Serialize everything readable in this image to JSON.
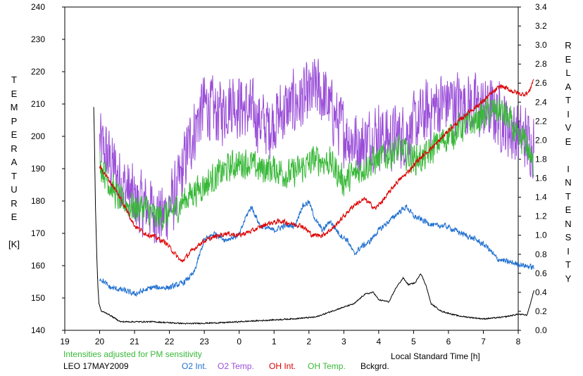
{
  "chart_data": {
    "type": "line",
    "x_ticks": [
      "19",
      "20",
      "21",
      "22",
      "23",
      "0",
      "1",
      "2",
      "3",
      "4",
      "5",
      "6",
      "7",
      "8"
    ],
    "xlim": [
      19,
      32
    ],
    "xlabel": "Local Standard Time [h]",
    "left_axis": {
      "label_letters": [
        "T",
        "E",
        "M",
        "P",
        "E",
        "R",
        "A",
        "T",
        "U",
        "R",
        "E",
        "",
        "[K]"
      ],
      "ylim": [
        140,
        240
      ],
      "ticks": [
        "140",
        "150",
        "160",
        "170",
        "180",
        "190",
        "200",
        "210",
        "220",
        "230",
        "240"
      ]
    },
    "right_axis": {
      "label_letters": [
        "R",
        "E",
        "L",
        "A",
        "T",
        "I",
        "V",
        "E",
        "",
        "I",
        "N",
        "T",
        "E",
        "N",
        "S",
        "I",
        "T",
        "Y"
      ],
      "ylim": [
        0.0,
        3.4
      ],
      "ticks": [
        "0.0",
        "0.2",
        "0.4",
        "0.6",
        "0.8",
        "1.0",
        "1.2",
        "1.4",
        "1.6",
        "1.8",
        "2.0",
        "2.2",
        "2.4",
        "2.6",
        "2.8",
        "3.0",
        "3.2",
        "3.4"
      ]
    },
    "series": [
      {
        "name": "O2 Int.",
        "axis": "right",
        "color": "#1f6fd0",
        "noise": 0.035,
        "points": [
          [
            20.0,
            0.55
          ],
          [
            20.3,
            0.45
          ],
          [
            20.7,
            0.42
          ],
          [
            21.0,
            0.38
          ],
          [
            21.5,
            0.45
          ],
          [
            22.0,
            0.45
          ],
          [
            22.4,
            0.5
          ],
          [
            22.7,
            0.6
          ],
          [
            23.0,
            0.95
          ],
          [
            23.3,
            1.02
          ],
          [
            23.6,
            0.95
          ],
          [
            24.0,
            1.0
          ],
          [
            24.2,
            1.2
          ],
          [
            24.35,
            1.3
          ],
          [
            24.6,
            1.1
          ],
          [
            25.0,
            1.05
          ],
          [
            25.3,
            1.1
          ],
          [
            25.6,
            1.1
          ],
          [
            25.8,
            1.3
          ],
          [
            26.0,
            1.35
          ],
          [
            26.2,
            1.15
          ],
          [
            26.4,
            1.05
          ],
          [
            26.6,
            1.15
          ],
          [
            26.9,
            1.0
          ],
          [
            27.1,
            0.95
          ],
          [
            27.3,
            0.8
          ],
          [
            27.5,
            0.88
          ],
          [
            27.7,
            0.92
          ],
          [
            28.0,
            1.05
          ],
          [
            28.3,
            1.15
          ],
          [
            28.6,
            1.25
          ],
          [
            28.8,
            1.3
          ],
          [
            29.0,
            1.2
          ],
          [
            29.3,
            1.15
          ],
          [
            29.6,
            1.1
          ],
          [
            29.9,
            1.1
          ],
          [
            30.2,
            1.05
          ],
          [
            30.5,
            1.0
          ],
          [
            30.8,
            0.95
          ],
          [
            31.1,
            0.88
          ],
          [
            31.4,
            0.75
          ],
          [
            31.7,
            0.72
          ],
          [
            32.2,
            0.68
          ],
          [
            32.45,
            0.66
          ]
        ]
      },
      {
        "name": "O2 Temp.",
        "axis": "left",
        "color": "#9a4ed8",
        "noise": 12,
        "points": [
          [
            20.0,
            198
          ],
          [
            20.3,
            192
          ],
          [
            20.7,
            185
          ],
          [
            21.0,
            180
          ],
          [
            21.4,
            178
          ],
          [
            21.8,
            175
          ],
          [
            22.2,
            182
          ],
          [
            22.5,
            195
          ],
          [
            22.8,
            205
          ],
          [
            23.0,
            210
          ],
          [
            23.4,
            207
          ],
          [
            23.8,
            211
          ],
          [
            24.1,
            209
          ],
          [
            24.5,
            206
          ],
          [
            24.8,
            203
          ],
          [
            25.2,
            207
          ],
          [
            25.6,
            210
          ],
          [
            26.0,
            212
          ],
          [
            26.2,
            215
          ],
          [
            26.5,
            211
          ],
          [
            26.8,
            205
          ],
          [
            27.2,
            199
          ],
          [
            27.5,
            197
          ],
          [
            27.9,
            201
          ],
          [
            28.3,
            199
          ],
          [
            28.8,
            201
          ],
          [
            29.2,
            205
          ],
          [
            29.6,
            209
          ],
          [
            30.0,
            211
          ],
          [
            30.5,
            210
          ],
          [
            31.0,
            208
          ],
          [
            31.4,
            207
          ],
          [
            31.7,
            203
          ],
          [
            32.0,
            200
          ],
          [
            32.45,
            198
          ]
        ]
      },
      {
        "name": "OH Int.",
        "axis": "right",
        "color": "#dc0000",
        "noise": 0.03,
        "points": [
          [
            20.0,
            1.72
          ],
          [
            20.2,
            1.62
          ],
          [
            20.5,
            1.45
          ],
          [
            20.8,
            1.25
          ],
          [
            21.0,
            1.1
          ],
          [
            21.3,
            1.02
          ],
          [
            21.6,
            0.98
          ],
          [
            21.9,
            0.92
          ],
          [
            22.1,
            0.83
          ],
          [
            22.35,
            0.72
          ],
          [
            22.6,
            0.82
          ],
          [
            22.9,
            0.92
          ],
          [
            23.2,
            0.97
          ],
          [
            23.6,
            1.02
          ],
          [
            24.0,
            1.0
          ],
          [
            24.4,
            1.05
          ],
          [
            24.8,
            1.12
          ],
          [
            25.2,
            1.15
          ],
          [
            25.5,
            1.12
          ],
          [
            25.8,
            1.1
          ],
          [
            26.1,
            1.0
          ],
          [
            26.4,
            1.0
          ],
          [
            26.7,
            1.08
          ],
          [
            27.0,
            1.2
          ],
          [
            27.3,
            1.32
          ],
          [
            27.6,
            1.38
          ],
          [
            27.9,
            1.28
          ],
          [
            28.2,
            1.4
          ],
          [
            28.5,
            1.55
          ],
          [
            28.8,
            1.65
          ],
          [
            29.1,
            1.78
          ],
          [
            29.4,
            1.88
          ],
          [
            29.7,
            1.98
          ],
          [
            30.0,
            2.1
          ],
          [
            30.3,
            2.2
          ],
          [
            30.6,
            2.3
          ],
          [
            30.9,
            2.38
          ],
          [
            31.2,
            2.48
          ],
          [
            31.5,
            2.57
          ],
          [
            31.8,
            2.52
          ],
          [
            32.1,
            2.48
          ],
          [
            32.3,
            2.5
          ],
          [
            32.45,
            2.65
          ]
        ]
      },
      {
        "name": "OH Temp.",
        "axis": "left",
        "color": "#38b838",
        "noise": 5.5,
        "points": [
          [
            20.0,
            192
          ],
          [
            20.3,
            185
          ],
          [
            20.6,
            180
          ],
          [
            21.0,
            178
          ],
          [
            21.3,
            178
          ],
          [
            21.6,
            175
          ],
          [
            22.0,
            176
          ],
          [
            22.3,
            179
          ],
          [
            22.6,
            182
          ],
          [
            23.0,
            185
          ],
          [
            23.4,
            188
          ],
          [
            23.8,
            191
          ],
          [
            24.2,
            192
          ],
          [
            24.6,
            190
          ],
          [
            25.0,
            190
          ],
          [
            25.4,
            188
          ],
          [
            25.8,
            190
          ],
          [
            26.2,
            193
          ],
          [
            26.6,
            192
          ],
          [
            27.0,
            186
          ],
          [
            27.4,
            189
          ],
          [
            27.8,
            192
          ],
          [
            28.2,
            194
          ],
          [
            28.6,
            196
          ],
          [
            29.0,
            193
          ],
          [
            29.3,
            193
          ],
          [
            29.6,
            197
          ],
          [
            30.0,
            200
          ],
          [
            30.4,
            203
          ],
          [
            30.8,
            205
          ],
          [
            31.2,
            208
          ],
          [
            31.5,
            208
          ],
          [
            31.8,
            204
          ],
          [
            32.0,
            198
          ],
          [
            32.2,
            199
          ],
          [
            32.45,
            190
          ]
        ]
      },
      {
        "name": "Bckgrd.",
        "axis": "right",
        "color": "#000000",
        "noise": 0.008,
        "points": [
          [
            19.83,
            2.35
          ],
          [
            19.85,
            2.0
          ],
          [
            19.88,
            1.3
          ],
          [
            19.92,
            0.75
          ],
          [
            19.95,
            0.45
          ],
          [
            19.98,
            0.28
          ],
          [
            20.05,
            0.2
          ],
          [
            20.2,
            0.18
          ],
          [
            20.6,
            0.09
          ],
          [
            21.5,
            0.09
          ],
          [
            22.5,
            0.07
          ],
          [
            23.5,
            0.08
          ],
          [
            24.5,
            0.1
          ],
          [
            25.5,
            0.12
          ],
          [
            26.2,
            0.14
          ],
          [
            26.8,
            0.22
          ],
          [
            27.3,
            0.28
          ],
          [
            27.6,
            0.38
          ],
          [
            27.85,
            0.4
          ],
          [
            28.0,
            0.32
          ],
          [
            28.3,
            0.3
          ],
          [
            28.5,
            0.45
          ],
          [
            28.7,
            0.55
          ],
          [
            28.85,
            0.48
          ],
          [
            29.05,
            0.5
          ],
          [
            29.2,
            0.6
          ],
          [
            29.35,
            0.48
          ],
          [
            29.5,
            0.28
          ],
          [
            29.8,
            0.2
          ],
          [
            30.3,
            0.15
          ],
          [
            31.0,
            0.12
          ],
          [
            31.6,
            0.14
          ],
          [
            32.0,
            0.17
          ],
          [
            32.25,
            0.16
          ],
          [
            32.35,
            0.28
          ],
          [
            32.45,
            0.42
          ]
        ]
      }
    ]
  },
  "notes": {
    "note_left": "Intensities adjusted for PM sensitivity",
    "station_date": "LEO 17MAY2009",
    "note_left_color": "#38b838"
  }
}
